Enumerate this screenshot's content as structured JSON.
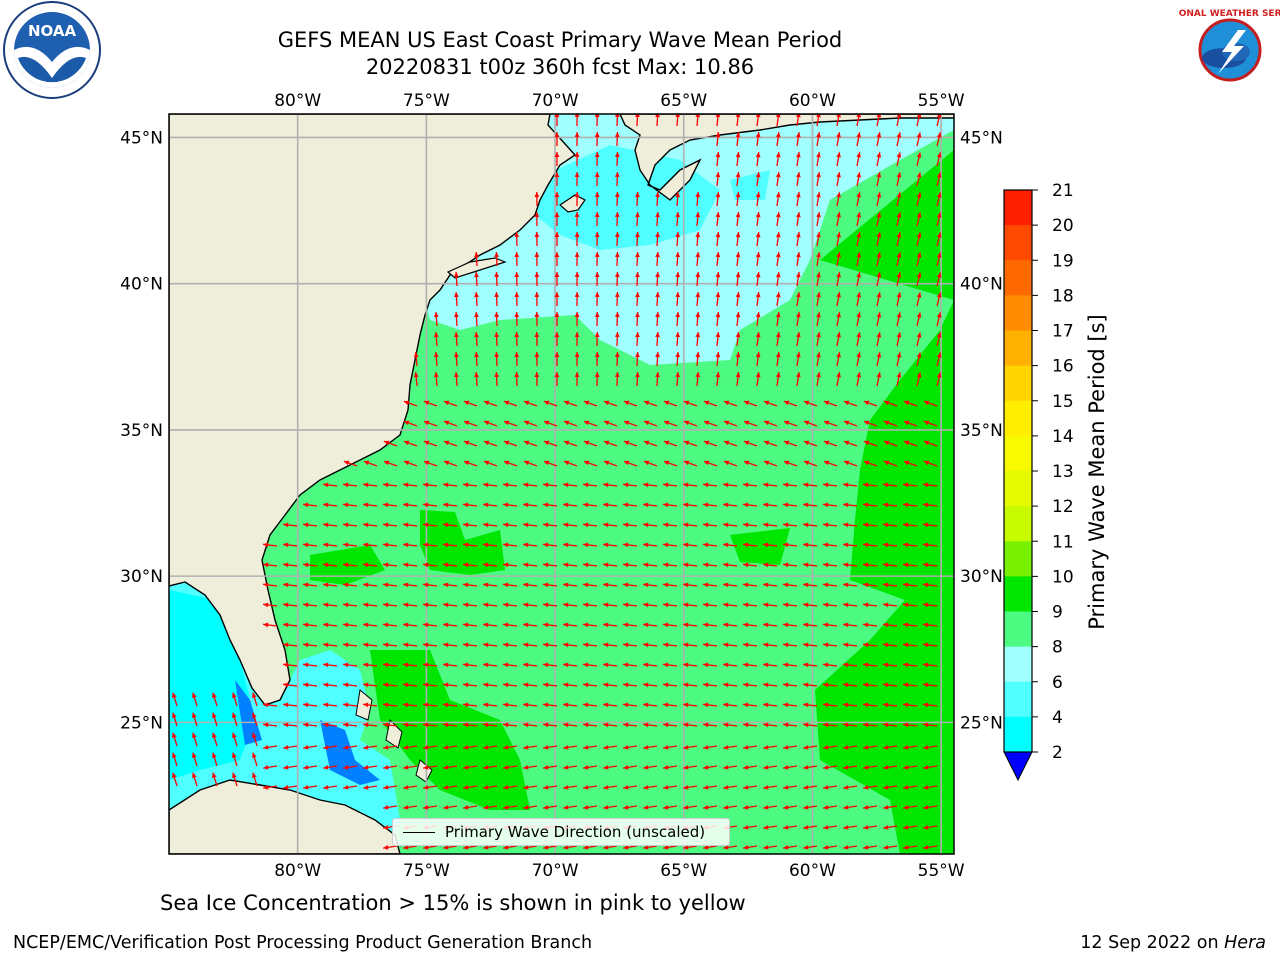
{
  "title_line1": "GEFS MEAN US East Coast Primary Wave Mean Period",
  "title_line2": "20220831 t00z 360h fcst   Max: 10.86",
  "logos": {
    "left": "NOAA",
    "right": "NATIONAL WEATHER SERVICE"
  },
  "map": {
    "lon_ticks": [
      "80°W",
      "75°W",
      "70°W",
      "65°W",
      "60°W",
      "55°W"
    ],
    "lat_ticks": [
      "45°N",
      "40°N",
      "35°N",
      "30°N",
      "25°N"
    ],
    "lon_values": [
      -80,
      -75,
      -70,
      -65,
      -60,
      -55
    ],
    "lat_values": [
      45,
      40,
      35,
      30,
      25
    ],
    "lon_range": [
      -85,
      -54.5
    ],
    "lat_range": [
      20.5,
      45.8
    ],
    "grid": true,
    "land_color": "#efeedb",
    "arrow_color": "#ff0000"
  },
  "legend": {
    "label": "Primary Wave Direction (unscaled)",
    "placement": "lower-center"
  },
  "colorbar": {
    "label": "Primary Wave Mean Period [s]",
    "ticks": [
      "21",
      "20",
      "19",
      "18",
      "17",
      "16",
      "15",
      "14",
      "13",
      "12",
      "11",
      "10",
      "9",
      "8",
      "6",
      "4",
      "2"
    ],
    "colors": [
      "#ff0000",
      "#ff2000",
      "#ff4a00",
      "#ff6a00",
      "#ff8c00",
      "#ffb000",
      "#ffd400",
      "#ffee00",
      "#f8fa00",
      "#e6fa00",
      "#c8fa00",
      "#78f000",
      "#00e600",
      "#4dfa82",
      "#a0ffff",
      "#50ffff",
      "#00ffff",
      "#0080ff"
    ],
    "under_color": "#0000ff"
  },
  "subtitle": "Sea Ice Concentration > 15% is shown in pink to yellow",
  "footer_left": "NCEP/EMC/Verification Post Processing Product Generation Branch",
  "footer_right_prefix": "12 Sep 2022 on ",
  "footer_right_host": "Hera"
}
